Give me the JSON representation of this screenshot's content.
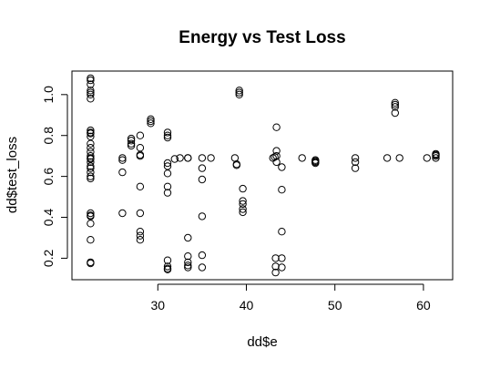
{
  "chart_data": {
    "type": "scatter",
    "title": "Energy vs Test Loss",
    "xlabel": "dd$e",
    "ylabel": "dd$test_loss",
    "xlim": [
      20.3,
      63.3
    ],
    "ylim": [
      0.095,
      1.115
    ],
    "x_ticks": [
      30,
      40,
      50,
      60
    ],
    "y_ticks": [
      0.2,
      0.4,
      0.6,
      0.8,
      1.0
    ],
    "x_tick_labels": [
      "30",
      "40",
      "50",
      "60"
    ],
    "y_tick_labels": [
      "0.2",
      "0.4",
      "0.6",
      "0.8",
      "1.0"
    ],
    "grid": false,
    "marker": "open-circle",
    "points": [
      [
        22.4,
        1.08
      ],
      [
        22.4,
        1.07
      ],
      [
        22.4,
        1.05
      ],
      [
        22.4,
        1.02
      ],
      [
        22.4,
        1.01
      ],
      [
        22.4,
        1.0
      ],
      [
        22.4,
        0.98
      ],
      [
        22.4,
        0.825
      ],
      [
        22.4,
        0.815
      ],
      [
        22.4,
        0.81
      ],
      [
        22.4,
        0.795
      ],
      [
        22.4,
        0.76
      ],
      [
        22.4,
        0.74
      ],
      [
        22.4,
        0.72
      ],
      [
        22.4,
        0.7
      ],
      [
        22.4,
        0.69
      ],
      [
        22.4,
        0.685
      ],
      [
        22.4,
        0.67
      ],
      [
        22.4,
        0.65
      ],
      [
        22.4,
        0.64
      ],
      [
        22.4,
        0.62
      ],
      [
        22.4,
        0.6
      ],
      [
        22.4,
        0.59
      ],
      [
        22.4,
        0.42
      ],
      [
        22.4,
        0.41
      ],
      [
        22.4,
        0.405
      ],
      [
        22.4,
        0.37
      ],
      [
        22.4,
        0.29
      ],
      [
        22.4,
        0.18
      ],
      [
        22.4,
        0.175
      ],
      [
        26.0,
        0.69
      ],
      [
        26.0,
        0.68
      ],
      [
        26.0,
        0.62
      ],
      [
        26.0,
        0.42
      ],
      [
        27.0,
        0.785
      ],
      [
        27.0,
        0.775
      ],
      [
        27.0,
        0.76
      ],
      [
        27.0,
        0.75
      ],
      [
        28.0,
        0.8
      ],
      [
        28.0,
        0.74
      ],
      [
        28.0,
        0.705
      ],
      [
        28.0,
        0.7
      ],
      [
        28.0,
        0.55
      ],
      [
        28.0,
        0.42
      ],
      [
        28.0,
        0.33
      ],
      [
        28.0,
        0.31
      ],
      [
        28.0,
        0.29
      ],
      [
        29.2,
        0.88
      ],
      [
        29.2,
        0.87
      ],
      [
        29.2,
        0.86
      ],
      [
        31.1,
        0.815
      ],
      [
        31.1,
        0.8
      ],
      [
        31.1,
        0.79
      ],
      [
        31.1,
        0.665
      ],
      [
        31.1,
        0.65
      ],
      [
        31.1,
        0.615
      ],
      [
        31.1,
        0.55
      ],
      [
        31.1,
        0.52
      ],
      [
        31.1,
        0.19
      ],
      [
        31.1,
        0.16
      ],
      [
        31.1,
        0.15
      ],
      [
        31.1,
        0.145
      ],
      [
        31.9,
        0.685
      ],
      [
        32.5,
        0.69
      ],
      [
        33.4,
        0.69
      ],
      [
        33.4,
        0.69
      ],
      [
        33.4,
        0.3
      ],
      [
        33.4,
        0.21
      ],
      [
        33.4,
        0.18
      ],
      [
        33.4,
        0.165
      ],
      [
        33.4,
        0.155
      ],
      [
        35.0,
        0.69
      ],
      [
        35.0,
        0.64
      ],
      [
        35.0,
        0.585
      ],
      [
        35.0,
        0.405
      ],
      [
        35.0,
        0.215
      ],
      [
        35.0,
        0.155
      ],
      [
        36.0,
        0.69
      ],
      [
        38.7,
        0.69
      ],
      [
        38.9,
        0.66
      ],
      [
        38.9,
        0.655
      ],
      [
        39.2,
        1.02
      ],
      [
        39.2,
        1.01
      ],
      [
        39.2,
        1.0
      ],
      [
        39.6,
        0.54
      ],
      [
        39.6,
        0.48
      ],
      [
        39.6,
        0.465
      ],
      [
        39.6,
        0.44
      ],
      [
        39.6,
        0.425
      ],
      [
        43.0,
        0.69
      ],
      [
        43.2,
        0.695
      ],
      [
        43.4,
        0.84
      ],
      [
        43.4,
        0.725
      ],
      [
        43.4,
        0.7
      ],
      [
        43.4,
        0.67
      ],
      [
        43.3,
        0.2
      ],
      [
        43.3,
        0.16
      ],
      [
        43.3,
        0.13
      ],
      [
        44.0,
        0.645
      ],
      [
        44.0,
        0.535
      ],
      [
        44.0,
        0.33
      ],
      [
        44.0,
        0.2
      ],
      [
        44.0,
        0.155
      ],
      [
        46.3,
        0.69
      ],
      [
        47.8,
        0.68
      ],
      [
        47.8,
        0.675
      ],
      [
        47.8,
        0.67
      ],
      [
        47.8,
        0.665
      ],
      [
        52.3,
        0.69
      ],
      [
        52.3,
        0.67
      ],
      [
        52.3,
        0.64
      ],
      [
        55.9,
        0.69
      ],
      [
        56.8,
        0.96
      ],
      [
        56.8,
        0.95
      ],
      [
        56.8,
        0.94
      ],
      [
        56.8,
        0.91
      ],
      [
        57.3,
        0.69
      ],
      [
        60.4,
        0.69
      ],
      [
        61.4,
        0.71
      ],
      [
        61.4,
        0.705
      ],
      [
        61.4,
        0.7
      ],
      [
        61.4,
        0.69
      ]
    ]
  }
}
